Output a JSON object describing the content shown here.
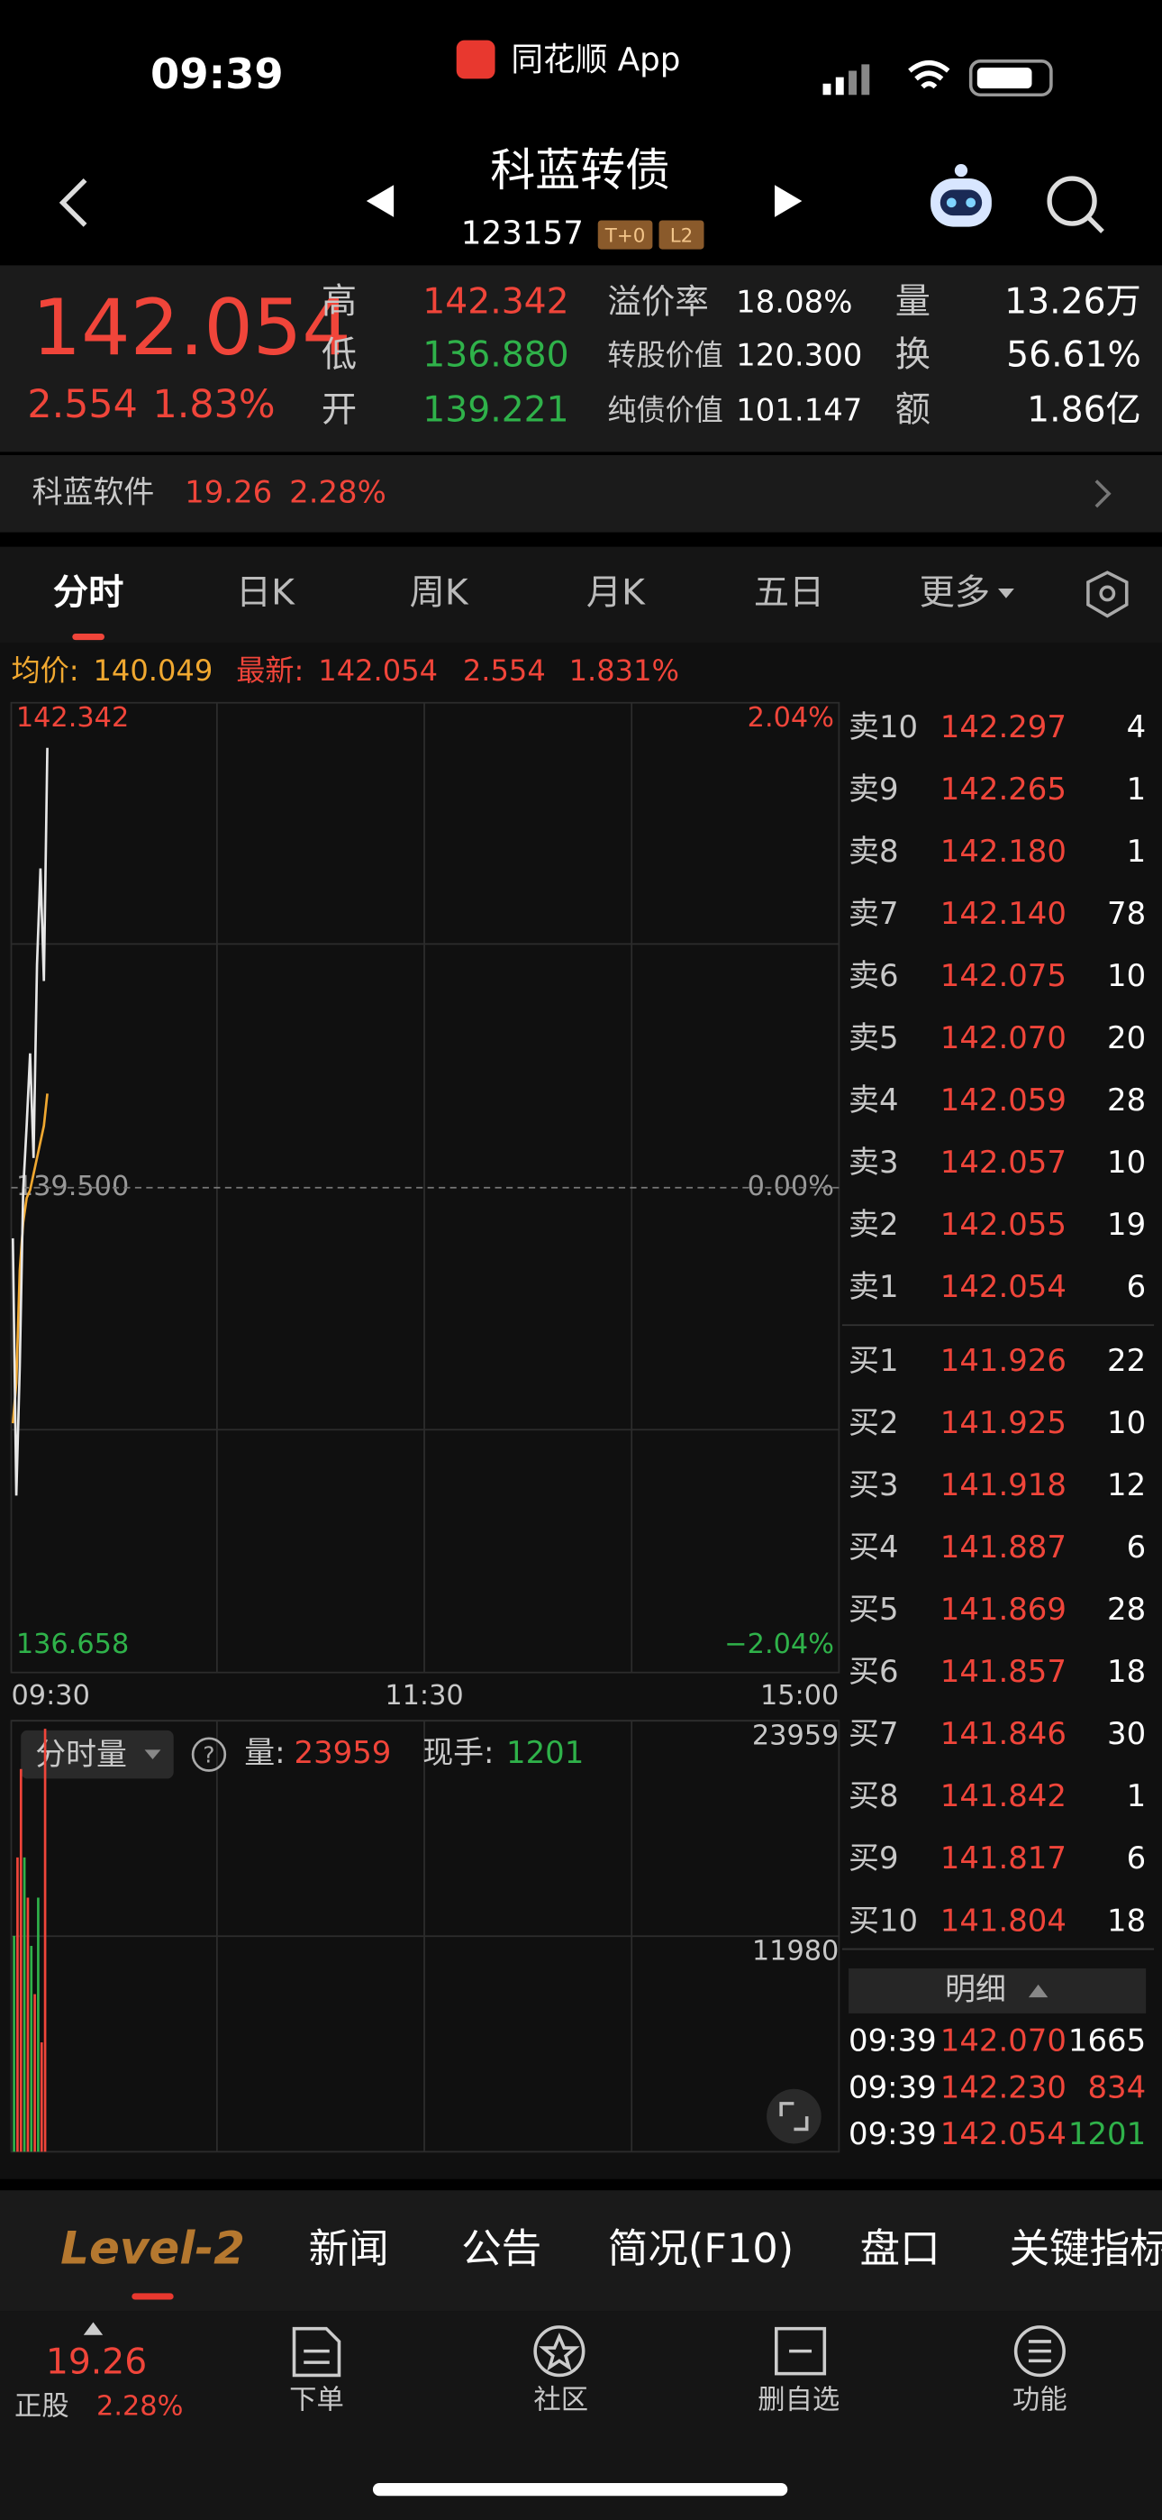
{
  "status": {
    "time": "09:39",
    "app": "同花顺 App"
  },
  "header": {
    "title": "科蓝转债",
    "code": "123157",
    "tags": [
      "T+0",
      "L2"
    ]
  },
  "quote": {
    "price": "142.054",
    "change": "2.554",
    "pct": "1.83%",
    "stats": [
      [
        {
          "label": "高",
          "value": "142.342",
          "color": "#f0453a"
        },
        {
          "label": "溢价率",
          "value": "18.08%"
        },
        {
          "label": "量",
          "value": "13.26万"
        }
      ],
      [
        {
          "label": "低",
          "value": "136.880",
          "color": "#2fb24a"
        },
        {
          "label": "转股价值",
          "value": "120.300"
        },
        {
          "label": "换",
          "value": "56.61%"
        }
      ],
      [
        {
          "label": "开",
          "value": "139.221",
          "color": "#2fb24a"
        },
        {
          "label": "纯债价值",
          "value": "101.147"
        },
        {
          "label": "额",
          "value": "1.86亿"
        }
      ]
    ]
  },
  "underlying": {
    "name": "科蓝软件",
    "price": "19.26",
    "pct": "2.28%"
  },
  "tabs": [
    "分时",
    "日K",
    "周K",
    "月K",
    "五日",
    "更多"
  ],
  "info": {
    "avg_label": "均价:",
    "avg": "140.049",
    "latest_label": "最新:",
    "latest": "142.054",
    "change": "2.554",
    "pct": "1.831%"
  },
  "intraday": {
    "ylim": [
      136.658,
      142.342
    ],
    "yticks": [
      142.342,
      {
        "value": 139.5,
        "label": "139.500"
      },
      136.658
    ],
    "pct_ticks": [
      "2.04%",
      "0.00%",
      "−2.04%"
    ],
    "xticks": [
      "09:30",
      "11:30",
      "15:00"
    ],
    "price": {
      "color": "#e6e6e6",
      "values": [
        139.203,
        137.695,
        138.449,
        139.486,
        139.863,
        140.287,
        139.674,
        140.806,
        141.371,
        140.711,
        142.078
      ]
    },
    "avg": {
      "color": "#f0a830",
      "values": [
        138.119,
        138.355,
        139.015,
        139.297,
        139.439,
        139.486,
        139.58,
        139.674,
        139.769,
        139.863,
        140.051
      ]
    }
  },
  "volume": {
    "selector": "分时量",
    "vol_label": "量:",
    "vol": 23959,
    "hand_label": "现手:",
    "hand": 1201,
    "ylim": [
      0,
      23959
    ],
    "yticks": [
      23959,
      11980
    ],
    "values": [
      12000,
      16360,
      21276,
      16360,
      14125,
      11443,
      8761,
      14125,
      6079,
      23512
    ],
    "colors": [
      "#2fb24a",
      "#f0453a",
      "#f0453a",
      "#2fb24a",
      "#f0453a",
      "#2fb24a",
      "#f0453a",
      "#2fb24a",
      "#f0453a",
      "#f0453a"
    ]
  },
  "book": {
    "sell": [
      [
        "卖10",
        "142.297",
        4
      ],
      [
        "卖9",
        "142.265",
        1
      ],
      [
        "卖8",
        "142.180",
        1
      ],
      [
        "卖7",
        "142.140",
        78
      ],
      [
        "卖6",
        "142.075",
        10
      ],
      [
        "卖5",
        "142.070",
        20
      ],
      [
        "卖4",
        "142.059",
        28
      ],
      [
        "卖3",
        "142.057",
        10
      ],
      [
        "卖2",
        "142.055",
        19
      ],
      [
        "卖1",
        "142.054",
        6
      ]
    ],
    "buy": [
      [
        "买1",
        "141.926",
        22
      ],
      [
        "买2",
        "141.925",
        10
      ],
      [
        "买3",
        "141.918",
        12
      ],
      [
        "买4",
        "141.887",
        6
      ],
      [
        "买5",
        "141.869",
        28
      ],
      [
        "买6",
        "141.857",
        18
      ],
      [
        "买7",
        "141.846",
        30
      ],
      [
        "买8",
        "141.842",
        1
      ],
      [
        "买9",
        "141.817",
        6
      ],
      [
        "买10",
        "141.804",
        18
      ]
    ],
    "detail_title": "明细",
    "detail": [
      {
        "time": "09:39",
        "price": "142.070",
        "qty": 1665,
        "color": "#ffffff"
      },
      {
        "time": "09:39",
        "price": "142.230",
        "qty": 834,
        "color": "#f0453a"
      },
      {
        "time": "09:39",
        "price": "142.054",
        "qty": 1201,
        "color": "#2fb24a"
      }
    ]
  },
  "bottom_tabs": [
    "Level-2",
    "新闻",
    "公告",
    "简况(F10)",
    "盘口",
    "关键指标"
  ],
  "footer": {
    "price": "19.26",
    "label": "正股",
    "pct": "2.28%",
    "buttons": [
      "下单",
      "社区",
      "删自选",
      "功能"
    ]
  }
}
